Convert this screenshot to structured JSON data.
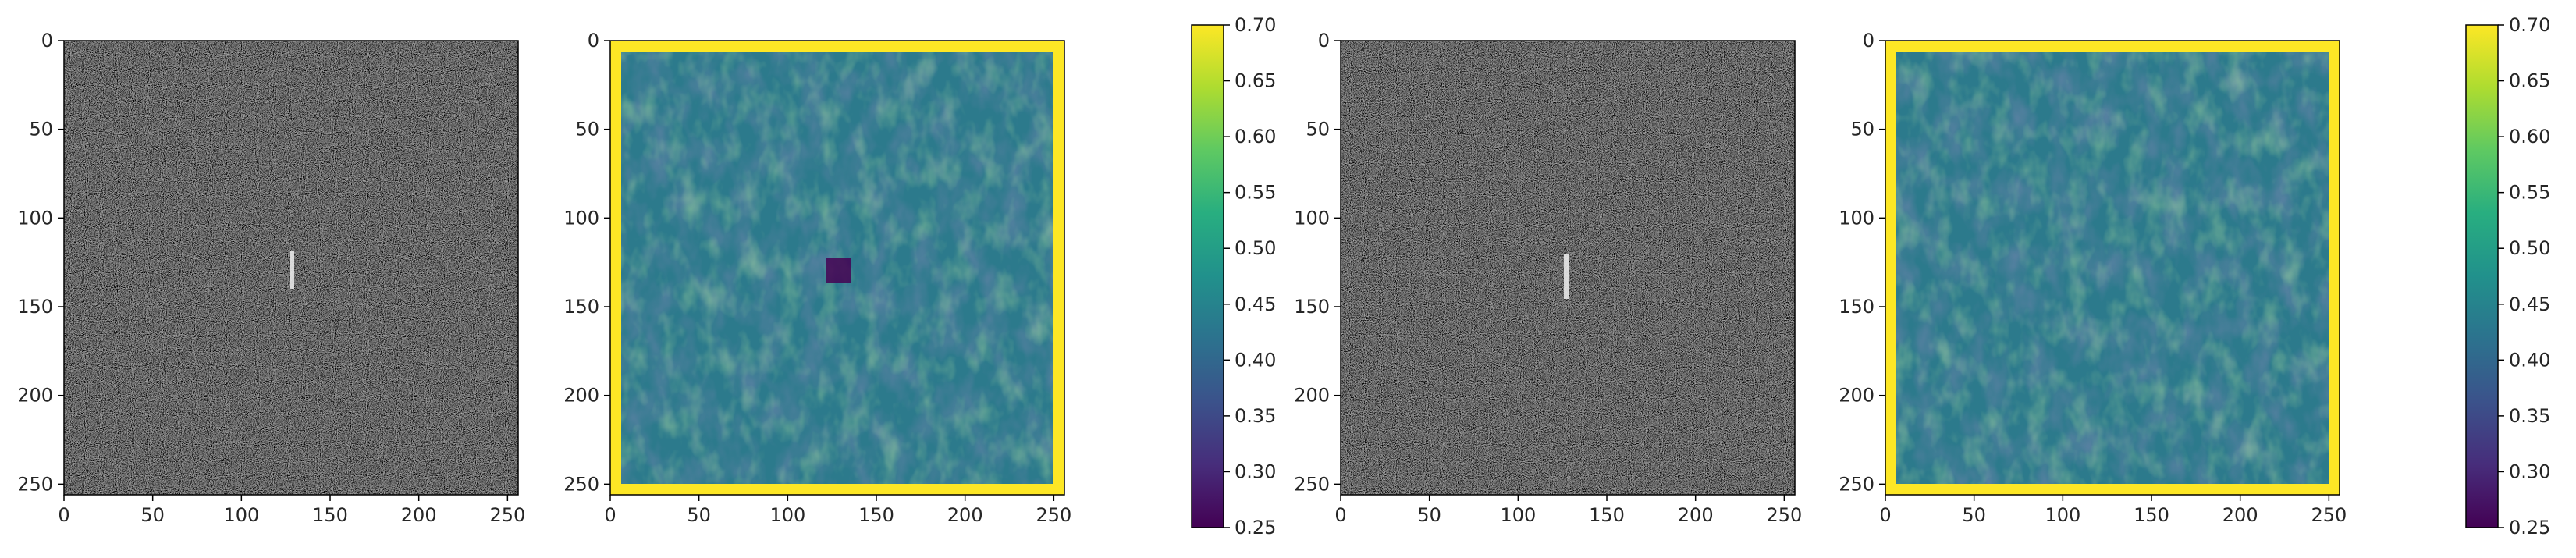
{
  "chart_data": [
    {
      "type": "heatmap",
      "colormap": "gray",
      "content": "speckle noise with a small bright vertical streak near the center",
      "bright_feature": {
        "x": 130,
        "y_range": [
          120,
          140
        ]
      },
      "xlim": [
        0,
        256
      ],
      "ylim": [
        256,
        0
      ],
      "xticks": [
        "0",
        "50",
        "100",
        "150",
        "200",
        "250"
      ],
      "yticks": [
        "0",
        "50",
        "100",
        "150",
        "200",
        "250"
      ]
    },
    {
      "type": "heatmap",
      "colormap": "viridis",
      "content": "mottled texture mostly 0.40-0.55 with a yellow border at 0.70 and a dark spot near the center",
      "border_value": 0.7,
      "dark_spot": {
        "x": 130,
        "y": 130,
        "value": 0.27
      },
      "xlim": [
        0,
        256
      ],
      "ylim": [
        256,
        0
      ],
      "xticks": [
        "0",
        "50",
        "100",
        "150",
        "200",
        "250"
      ],
      "yticks": [
        "0",
        "50",
        "100",
        "150",
        "200",
        "250"
      ]
    },
    {
      "type": "colorbar",
      "colormap": "viridis",
      "range": [
        0.25,
        0.7
      ],
      "ticks": [
        "0.70",
        "0.65",
        "0.60",
        "0.55",
        "0.50",
        "0.45",
        "0.40",
        "0.35",
        "0.30",
        "0.25"
      ]
    },
    {
      "type": "heatmap",
      "colormap": "gray",
      "content": "speckle noise with a small bright vertical streak near the center",
      "bright_feature": {
        "x": 128,
        "y_range": [
          120,
          145
        ]
      },
      "xlim": [
        0,
        256
      ],
      "ylim": [
        256,
        0
      ],
      "xticks": [
        "0",
        "50",
        "100",
        "150",
        "200",
        "250"
      ],
      "yticks": [
        "0",
        "50",
        "100",
        "150",
        "200",
        "250"
      ]
    },
    {
      "type": "heatmap",
      "colormap": "viridis",
      "content": "mottled texture mostly 0.40-0.55 with a yellow border at 0.70",
      "border_value": 0.7,
      "xlim": [
        0,
        256
      ],
      "ylim": [
        256,
        0
      ],
      "xticks": [
        "0",
        "50",
        "100",
        "150",
        "200",
        "250"
      ],
      "yticks": [
        "0",
        "50",
        "100",
        "150",
        "200",
        "250"
      ]
    },
    {
      "type": "colorbar",
      "colormap": "viridis",
      "range": [
        0.25,
        0.7
      ],
      "ticks": [
        "0.70",
        "0.65",
        "0.60",
        "0.55",
        "0.50",
        "0.45",
        "0.40",
        "0.35",
        "0.30",
        "0.25"
      ]
    }
  ]
}
